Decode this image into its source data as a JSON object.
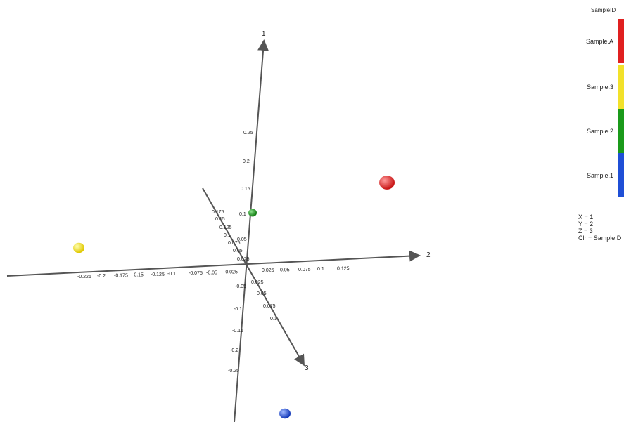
{
  "chart_data": {
    "type": "scatter",
    "axes": {
      "x": {
        "name": "2",
        "ticks_negative": [
          "-0.225",
          "-0.2",
          "-0.175",
          "-0.15",
          "-0.125",
          "-0.1",
          "-0.075",
          "-0.05",
          "-0.025"
        ],
        "ticks_positive": [
          "0.025",
          "0.05",
          "0.075",
          "0.1",
          "0.125"
        ]
      },
      "y": {
        "name": "1",
        "ticks_positive": [
          "0.25",
          "0.2",
          "0.15",
          "0.1",
          "0.05"
        ],
        "ticks_negative": [
          "-0.05",
          "-0.1",
          "-0.15",
          "-0.2",
          "-0.25"
        ]
      },
      "z": {
        "name": "3",
        "ticks_back": [
          "0.175",
          "0.15",
          "0.125",
          "0.1",
          "0.075",
          "0.05",
          "0.025"
        ],
        "ticks_front": [
          "0.025",
          "0.05",
          "0.075",
          "0.1"
        ]
      }
    },
    "points": [
      {
        "group": "Sample.A",
        "color": "#e02020"
      },
      {
        "group": "Sample.3",
        "color": "#f2e12a"
      },
      {
        "group": "Sample.2",
        "color": "#1a9a1a"
      },
      {
        "group": "Sample.1",
        "color": "#1f4fd6"
      }
    ],
    "legend": {
      "title": "SampleID",
      "entries": [
        {
          "label": "Sample.A",
          "color": "#e02020"
        },
        {
          "label": "Sample.3",
          "color": "#f2e12a"
        },
        {
          "label": "Sample.2",
          "color": "#1a9a1a"
        },
        {
          "label": "Sample.1",
          "color": "#1f4fd6"
        }
      ],
      "placement": "right"
    },
    "mapping": [
      "X = 1",
      "Y = 2",
      "Z = 3",
      "Clr = SampleID"
    ]
  }
}
